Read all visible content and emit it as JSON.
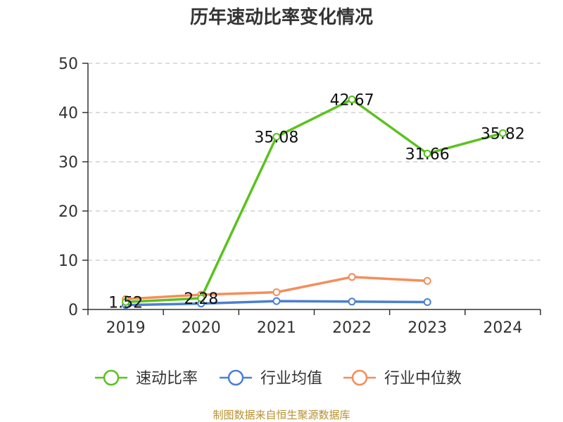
{
  "chart_data": {
    "type": "line",
    "title": "历年速动比率变化情况",
    "x": [
      "2019",
      "2020",
      "2021",
      "2022",
      "2023",
      "2024"
    ],
    "ylim": [
      0,
      50
    ],
    "yticks": [
      0,
      10,
      20,
      30,
      40,
      50
    ],
    "grid": "horizontal-dashed",
    "legend_position": "bottom",
    "series": [
      {
        "name": "速动比率",
        "color": "#5ac21e",
        "values": [
          1.52,
          2.28,
          35.08,
          42.67,
          31.66,
          35.82
        ],
        "labels": [
          "1.52",
          "2.28",
          "35.08",
          "42.67",
          "31.66",
          "35.82"
        ]
      },
      {
        "name": "行业均值",
        "color": "#4a7fd4",
        "values": [
          0.9,
          1.2,
          1.7,
          1.6,
          1.5,
          null
        ]
      },
      {
        "name": "行业中位数",
        "color": "#f58d5a",
        "values": [
          2.1,
          3.0,
          3.5,
          6.6,
          5.8,
          null
        ]
      }
    ]
  },
  "footer": {
    "source": "制图数据来自恒生聚源数据库"
  }
}
